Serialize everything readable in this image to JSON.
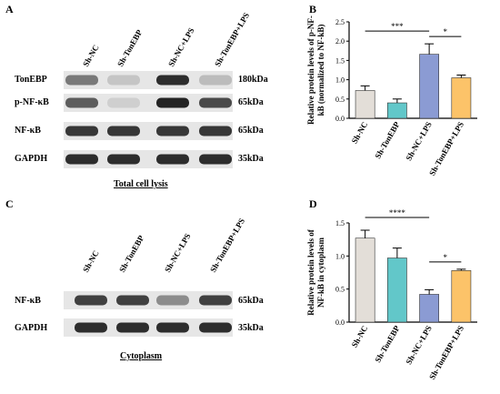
{
  "panels": {
    "A": {
      "letter": "A",
      "lanes": [
        "Sh-NC",
        "Sh-TonEBP",
        "Sh-NC+LPS",
        "Sh-TonEBP+LPS"
      ],
      "rows": [
        {
          "name": "TonEBP",
          "kda": "180kDa",
          "intensity": [
            0.55,
            0.15,
            0.95,
            0.2
          ]
        },
        {
          "name": "p-NF-κB",
          "kda": "65kDa",
          "intensity": [
            0.7,
            0.1,
            1.0,
            0.8
          ]
        },
        {
          "name": "NF-κB",
          "kda": "65kDa",
          "intensity": [
            0.9,
            0.9,
            0.9,
            0.9
          ]
        },
        {
          "name": "GAPDH",
          "kda": "35kDa",
          "intensity": [
            0.95,
            0.95,
            0.95,
            0.95
          ]
        }
      ],
      "caption": "Total cell lysis"
    },
    "C": {
      "letter": "C",
      "lanes": [
        "Sh-NC",
        "Sh-TonEBP",
        "Sh-NC+LPS",
        "Sh-TonEBP+LPS"
      ],
      "rows": [
        {
          "name": "NF-κB",
          "kda": "65kDa",
          "intensity": [
            0.85,
            0.85,
            0.45,
            0.85
          ]
        },
        {
          "name": "GAPDH",
          "kda": "35kDa",
          "intensity": [
            0.95,
            0.95,
            0.95,
            0.95
          ]
        }
      ],
      "caption": "Cytoplasm"
    },
    "B": {
      "letter": "B"
    },
    "D": {
      "letter": "D"
    }
  },
  "chart_data": [
    {
      "panel": "B",
      "type": "bar",
      "categories": [
        "Sh-NC",
        "Sh-TonEBP",
        "Sh-NC+LPS",
        "Sh-TonEBP+LPS"
      ],
      "values": [
        0.72,
        0.4,
        1.66,
        1.05
      ],
      "errors": [
        0.12,
        0.1,
        0.27,
        0.07
      ],
      "colors": [
        "#e3ded8",
        "#62c7c9",
        "#8b9bd3",
        "#fcc369"
      ],
      "ylabel_lines": [
        "Relative protein levels of p-NF-",
        "kB  (normalized to NF-kB)"
      ],
      "ylim": [
        0,
        2.5
      ],
      "yticks": [
        "0.0",
        "0.5",
        "1.0",
        "1.5",
        "2.0",
        "2.5"
      ],
      "significance": [
        {
          "from": 0,
          "to": 2,
          "label": "***"
        },
        {
          "from": 2,
          "to": 3,
          "label": "*"
        }
      ]
    },
    {
      "panel": "D",
      "type": "bar",
      "categories": [
        "Sh-NC",
        "Sh-TonEBP",
        "Sh-NC+LPS",
        "Sh-TonEBP+LPS"
      ],
      "values": [
        1.27,
        0.97,
        0.42,
        0.78
      ],
      "errors": [
        0.12,
        0.15,
        0.07,
        0.02
      ],
      "colors": [
        "#e3ded8",
        "#62c7c9",
        "#8b9bd3",
        "#fcc369"
      ],
      "ylabel_lines": [
        "Relative protein levels of",
        "NF-kB in cytoplasm"
      ],
      "ylim": [
        0,
        1.5
      ],
      "yticks": [
        "0.0",
        "0.5",
        "1.0",
        "1.5"
      ],
      "significance": [
        {
          "from": 0,
          "to": 2,
          "label": "****"
        },
        {
          "from": 2,
          "to": 3,
          "label": "*"
        }
      ]
    }
  ]
}
